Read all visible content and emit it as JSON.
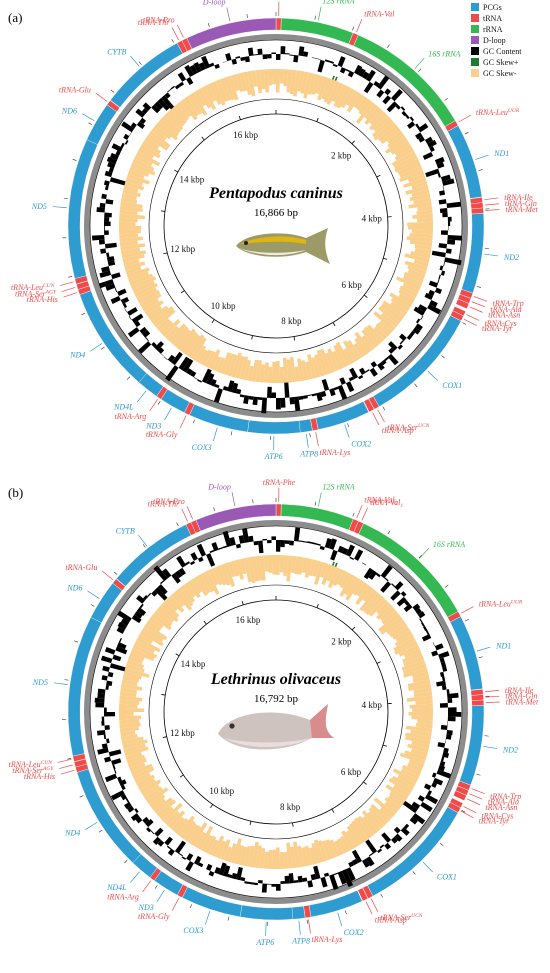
{
  "colors": {
    "PCG": "#2E9BD1",
    "tRNA": "#F04A4A",
    "rRNA": "#33B852",
    "Dloop": "#9B59B6",
    "backbone": "#8C8C8C",
    "gc_content": "#000000",
    "gc_skew_pos": "#1E7B32",
    "gc_skew_neg": "#FACE8B"
  },
  "legend": [
    {
      "key": "PCG",
      "label": "PCGs"
    },
    {
      "key": "tRNA",
      "label": "tRNA"
    },
    {
      "key": "rRNA",
      "label": "rRNA"
    },
    {
      "key": "Dloop",
      "label": "D-loop"
    },
    {
      "key": "gc_content",
      "label": "GC Content"
    },
    {
      "key": "gc_skew_pos",
      "label": "GC Skew+"
    },
    {
      "key": "gc_skew_neg",
      "label": "GC Skew-"
    }
  ],
  "panels": [
    {
      "letter": "(a)",
      "species": "Pentapodus caninus",
      "length_text": "16,866 bp",
      "length_bp": 16866,
      "fish": "yellow",
      "kbp_labels": [
        "2 kbp",
        "4 kbp",
        "6 kbp",
        "8 kbp",
        "10 kbp",
        "12 kbp",
        "14 kbp",
        "16 kbp"
      ],
      "genes": [
        {
          "name": "tRNA-Phe",
          "label": "tRNA-Phe",
          "type": "tRNA",
          "start": 1,
          "end": 68
        },
        {
          "name": "12S rRNA",
          "label": "12S rRNA",
          "type": "rRNA",
          "start": 69,
          "end": 1020
        },
        {
          "name": "tRNA-Val",
          "label": "tRNA-Val",
          "type": "tRNA",
          "start": 1021,
          "end": 1092
        },
        {
          "name": "16S rRNA",
          "label": "16S rRNA",
          "type": "rRNA",
          "start": 1093,
          "end": 2790
        },
        {
          "name": "tRNA-LeuUUR",
          "label": "tRNA-Leu",
          "sup": "UUR",
          "type": "tRNA",
          "start": 2791,
          "end": 2864
        },
        {
          "name": "ND1",
          "label": "ND1",
          "type": "PCG",
          "start": 2865,
          "end": 3839
        },
        {
          "name": "tRNA-Ile",
          "label": "tRNA-Ile",
          "type": "tRNA",
          "start": 3845,
          "end": 3914
        },
        {
          "name": "tRNA-Gln",
          "label": "tRNA-Gln",
          "type": "tRNA",
          "start": 3914,
          "end": 3984
        },
        {
          "name": "tRNA-Met",
          "label": "tRNA-Met",
          "type": "tRNA",
          "start": 3984,
          "end": 4053
        },
        {
          "name": "ND2",
          "label": "ND2",
          "type": "PCG",
          "start": 4054,
          "end": 5099
        },
        {
          "name": "tRNA-Trp",
          "label": "tRNA-Trp",
          "type": "tRNA",
          "start": 5100,
          "end": 5171
        },
        {
          "name": "tRNA-Ala",
          "label": "tRNA-Ala",
          "type": "tRNA",
          "start": 5173,
          "end": 5241
        },
        {
          "name": "tRNA-Asn",
          "label": "tRNA-Asn",
          "type": "tRNA",
          "start": 5243,
          "end": 5315
        },
        {
          "name": "tRNA-Cys",
          "label": "tRNA-Cys",
          "type": "tRNA",
          "start": 5352,
          "end": 5417
        },
        {
          "name": "tRNA-Tyr",
          "label": "tRNA-Tyr",
          "type": "tRNA",
          "start": 5418,
          "end": 5488
        },
        {
          "name": "COX1",
          "label": "COX1",
          "type": "PCG",
          "start": 5490,
          "end": 7040
        },
        {
          "name": "tRNA-SerUCN",
          "label": "tRNA-Ser",
          "sup": "UCN",
          "type": "tRNA",
          "start": 7041,
          "end": 7111
        },
        {
          "name": "tRNA-Asp",
          "label": "tRNA-Asp",
          "type": "tRNA",
          "start": 7115,
          "end": 7186
        },
        {
          "name": "COX2",
          "label": "COX2",
          "type": "PCG",
          "start": 7194,
          "end": 7884
        },
        {
          "name": "tRNA-Lys",
          "label": "tRNA-Lys",
          "type": "tRNA",
          "start": 7885,
          "end": 7959
        },
        {
          "name": "ATP8",
          "label": "ATP8",
          "type": "PCG",
          "start": 7961,
          "end": 8128
        },
        {
          "name": "ATP6",
          "label": "ATP6",
          "type": "PCG",
          "start": 8119,
          "end": 8802
        },
        {
          "name": "COX3",
          "label": "COX3",
          "type": "PCG",
          "start": 8802,
          "end": 9586
        },
        {
          "name": "tRNA-Gly",
          "label": "tRNA-Gly",
          "type": "tRNA",
          "start": 9587,
          "end": 9658
        },
        {
          "name": "ND3",
          "label": "ND3",
          "type": "PCG",
          "start": 9659,
          "end": 10007
        },
        {
          "name": "tRNA-Arg",
          "label": "tRNA-Arg",
          "type": "tRNA",
          "start": 10008,
          "end": 10076
        },
        {
          "name": "ND4L",
          "label": "ND4L",
          "type": "PCG",
          "start": 10077,
          "end": 10373
        },
        {
          "name": "ND4",
          "label": "ND4",
          "type": "PCG",
          "start": 10367,
          "end": 11747
        },
        {
          "name": "tRNA-His",
          "label": "tRNA-His",
          "type": "tRNA",
          "start": 11748,
          "end": 11817
        },
        {
          "name": "tRNA-SerAGY",
          "label": "tRNA-Ser",
          "sup": "AGY",
          "type": "tRNA",
          "start": 11818,
          "end": 11886
        },
        {
          "name": "tRNA-LeuCUN",
          "label": "tRNA-Leu",
          "sup": "CUN",
          "type": "tRNA",
          "start": 11891,
          "end": 11963
        },
        {
          "name": "ND5",
          "label": "ND5",
          "type": "PCG",
          "start": 11964,
          "end": 13802
        },
        {
          "name": "ND6",
          "label": "ND6",
          "type": "PCG",
          "start": 13799,
          "end": 14320
        },
        {
          "name": "tRNA-Glu",
          "label": "tRNA-Glu",
          "type": "tRNA",
          "start": 14321,
          "end": 14389
        },
        {
          "name": "CYTB",
          "label": "CYTB",
          "type": "PCG",
          "start": 14395,
          "end": 15535
        },
        {
          "name": "tRNA-Thr",
          "label": "tRNA-Thr",
          "type": "tRNA",
          "start": 15536,
          "end": 15607
        },
        {
          "name": "tRNA-Pro",
          "label": "tRNA-Pro",
          "type": "tRNA",
          "start": 15607,
          "end": 15676
        },
        {
          "name": "D-loop",
          "label": "D-loop",
          "type": "Dloop",
          "start": 15677,
          "end": 16866
        }
      ]
    },
    {
      "letter": "(b)",
      "species": "Lethrinus olivaceus",
      "length_text": "16,792 bp",
      "length_bp": 16792,
      "fish": "silver",
      "kbp_labels": [
        "2 kbp",
        "4 kbp",
        "6 kbp",
        "8 kbp",
        "10 kbp",
        "12 kbp",
        "14 kbp",
        "16 kbp"
      ],
      "genes": [
        {
          "name": "tRNA-Phe",
          "label": "tRNA-Phe",
          "type": "tRNA",
          "start": 1,
          "end": 68
        },
        {
          "name": "12S rRNA",
          "label": "12S rRNA",
          "type": "rRNA",
          "start": 69,
          "end": 1018
        },
        {
          "name": "tRNA-Val0",
          "label": "tRNA-Val",
          "sub": "0",
          "type": "tRNA",
          "start": 1019,
          "end": 1090
        },
        {
          "name": "tRNA-Val1",
          "label": "tRNA-Val",
          "sub": "1",
          "type": "tRNA",
          "start": 1091,
          "end": 1162
        },
        {
          "name": "16S rRNA",
          "label": "16S rRNA",
          "type": "rRNA",
          "start": 1163,
          "end": 2850
        },
        {
          "name": "tRNA-LeuUUR",
          "label": "tRNA-Leu",
          "sup": "UUR",
          "type": "tRNA",
          "start": 2851,
          "end": 2924
        },
        {
          "name": "ND1",
          "label": "ND1",
          "type": "PCG",
          "start": 2925,
          "end": 3899
        },
        {
          "name": "tRNA-Ile",
          "label": "tRNA-Ile",
          "type": "tRNA",
          "start": 3905,
          "end": 3974
        },
        {
          "name": "tRNA-Gln",
          "label": "tRNA-Gln",
          "type": "tRNA",
          "start": 3974,
          "end": 4044
        },
        {
          "name": "tRNA-Met",
          "label": "tRNA-Met",
          "type": "tRNA",
          "start": 4044,
          "end": 4113
        },
        {
          "name": "ND2",
          "label": "ND2",
          "type": "PCG",
          "start": 4114,
          "end": 5159
        },
        {
          "name": "tRNA-Trp",
          "label": "tRNA-Trp",
          "type": "tRNA",
          "start": 5160,
          "end": 5231
        },
        {
          "name": "tRNA-Ala",
          "label": "tRNA-Ala",
          "type": "tRNA",
          "start": 5233,
          "end": 5301
        },
        {
          "name": "tRNA-Asn",
          "label": "tRNA-Asn",
          "type": "tRNA",
          "start": 5303,
          "end": 5375
        },
        {
          "name": "tRNA-Cys",
          "label": "tRNA-Cys",
          "type": "tRNA",
          "start": 5412,
          "end": 5477
        },
        {
          "name": "tRNA-Tyr",
          "label": "tRNA-Tyr",
          "type": "tRNA",
          "start": 5478,
          "end": 5548
        },
        {
          "name": "COX1",
          "label": "COX1",
          "type": "PCG",
          "start": 5550,
          "end": 7100
        },
        {
          "name": "tRNA-SerUCN",
          "label": "tRNA-Ser",
          "sup": "UCN",
          "type": "tRNA",
          "start": 7101,
          "end": 7171
        },
        {
          "name": "tRNA-Asp",
          "label": "tRNA-Asp",
          "type": "tRNA",
          "start": 7175,
          "end": 7246
        },
        {
          "name": "COX2",
          "label": "COX2",
          "type": "PCG",
          "start": 7254,
          "end": 7944
        },
        {
          "name": "tRNA-Lys",
          "label": "tRNA-Lys",
          "type": "tRNA",
          "start": 7945,
          "end": 8019
        },
        {
          "name": "ATP8",
          "label": "ATP8",
          "type": "PCG",
          "start": 8021,
          "end": 8188
        },
        {
          "name": "ATP6",
          "label": "ATP6",
          "type": "PCG",
          "start": 8179,
          "end": 8862
        },
        {
          "name": "COX3",
          "label": "COX3",
          "type": "PCG",
          "start": 8862,
          "end": 9646
        },
        {
          "name": "tRNA-Gly",
          "label": "tRNA-Gly",
          "type": "tRNA",
          "start": 9647,
          "end": 9718
        },
        {
          "name": "ND3",
          "label": "ND3",
          "type": "PCG",
          "start": 9719,
          "end": 10067
        },
        {
          "name": "tRNA-Arg",
          "label": "tRNA-Arg",
          "type": "tRNA",
          "start": 10068,
          "end": 10136
        },
        {
          "name": "ND4L",
          "label": "ND4L",
          "type": "PCG",
          "start": 10137,
          "end": 10433
        },
        {
          "name": "ND4",
          "label": "ND4",
          "type": "PCG",
          "start": 10427,
          "end": 11807
        },
        {
          "name": "tRNA-His",
          "label": "tRNA-His",
          "type": "tRNA",
          "start": 11808,
          "end": 11877
        },
        {
          "name": "tRNA-SerAGY",
          "label": "tRNA-Ser",
          "sup": "AGY",
          "type": "tRNA",
          "start": 11878,
          "end": 11946
        },
        {
          "name": "tRNA-LeuCUN",
          "label": "tRNA-Leu",
          "sup": "CUN",
          "type": "tRNA",
          "start": 11951,
          "end": 12023
        },
        {
          "name": "ND5",
          "label": "ND5",
          "type": "PCG",
          "start": 12024,
          "end": 13862
        },
        {
          "name": "ND6",
          "label": "ND6",
          "type": "PCG",
          "start": 13859,
          "end": 14380
        },
        {
          "name": "tRNA-Glu",
          "label": "tRNA-Glu",
          "type": "tRNA",
          "start": 14381,
          "end": 14449
        },
        {
          "name": "CYTB",
          "label": "CYTB",
          "type": "PCG",
          "start": 14455,
          "end": 15595
        },
        {
          "name": "tRNA-Thr",
          "label": "tRNA-Thr",
          "type": "tRNA",
          "start": 15596,
          "end": 15667
        },
        {
          "name": "tRNA-Pro",
          "label": "tRNA-Pro",
          "type": "tRNA",
          "start": 15667,
          "end": 15736
        },
        {
          "name": "D-loop",
          "label": "D-loop",
          "type": "Dloop",
          "start": 15737,
          "end": 16792
        }
      ]
    }
  ]
}
